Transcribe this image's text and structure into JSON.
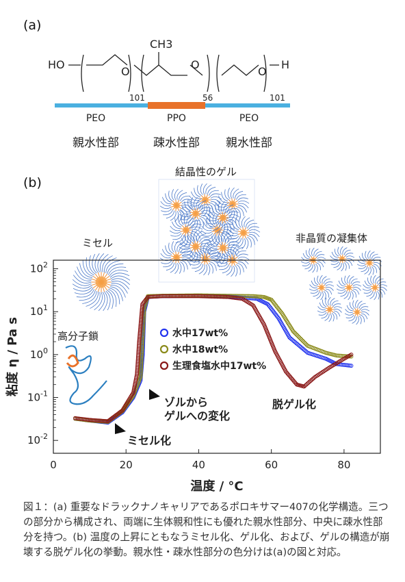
{
  "panel_a": {
    "label": "(a)",
    "formula": {
      "ho": "HO",
      "o1": "O",
      "ch3": "CH3",
      "o2": "O",
      "o3": "O",
      "h": "H",
      "n1": "101",
      "n2": "56",
      "n3": "101"
    },
    "segments": [
      {
        "name": "PEO",
        "role": "親水性部",
        "color": "#4ab0e0"
      },
      {
        "name": "PPO",
        "role": "疎水性部",
        "color": "#e8722a"
      },
      {
        "name": "PEO",
        "role": "親水性部",
        "color": "#4ab0e0"
      }
    ]
  },
  "panel_b": {
    "label": "(b)",
    "illustrations": {
      "micelle": "ミセル",
      "crystal_gel": "結晶性のゲル",
      "amorphous": "非晶質の凝集体",
      "polymer": "高分子鎖"
    },
    "annotations": {
      "micellization": "ミセル化",
      "sol_gel_1": "ゾルから",
      "sol_gel_2": "ゲルへの変化",
      "degel": "脱ゲル化"
    }
  },
  "chart_data": {
    "type": "scatter",
    "xlabel": "温度 / °C",
    "ylabel": "粘度 η / Pa s",
    "xlim": [
      0,
      90
    ],
    "ylim_log10": [
      -2.3,
      2.2
    ],
    "x_ticks": [
      0,
      20,
      40,
      60,
      80
    ],
    "y_ticks": [
      "10^-2",
      "10^-1",
      "10^0",
      "10^1",
      "10^2"
    ],
    "legend_position": "middle-left",
    "series": [
      {
        "name": "水中17wt%",
        "color": "#2233ee",
        "points": [
          [
            6,
            0.032
          ],
          [
            10,
            0.029
          ],
          [
            15,
            0.026
          ],
          [
            19,
            0.045
          ],
          [
            22,
            0.1
          ],
          [
            24,
            0.25
          ],
          [
            24.6,
            1
          ],
          [
            25,
            10
          ],
          [
            26,
            22
          ],
          [
            30,
            23
          ],
          [
            40,
            23.5
          ],
          [
            50,
            22
          ],
          [
            56,
            20
          ],
          [
            59,
            15
          ],
          [
            62,
            7
          ],
          [
            65,
            2.5
          ],
          [
            70,
            1.1
          ],
          [
            75,
            0.8
          ],
          [
            78,
            0.6
          ],
          [
            82,
            0.55
          ]
        ]
      },
      {
        "name": "水中18wt%",
        "color": "#8a8a1a",
        "points": [
          [
            6,
            0.032
          ],
          [
            10,
            0.029
          ],
          [
            15,
            0.027
          ],
          [
            19,
            0.048
          ],
          [
            22,
            0.11
          ],
          [
            24,
            0.3
          ],
          [
            24.5,
            2
          ],
          [
            25,
            12
          ],
          [
            26,
            23
          ],
          [
            30,
            23.5
          ],
          [
            40,
            24
          ],
          [
            55,
            23
          ],
          [
            58,
            22
          ],
          [
            60,
            19
          ],
          [
            63,
            9
          ],
          [
            66,
            3.5
          ],
          [
            70,
            1.6
          ],
          [
            75,
            1.1
          ],
          [
            78,
            0.95
          ],
          [
            82,
            0.9
          ]
        ]
      },
      {
        "name": "生理食塩水中17wt%",
        "color": "#8a1818",
        "points": [
          [
            6,
            0.033
          ],
          [
            10,
            0.03
          ],
          [
            15,
            0.028
          ],
          [
            19,
            0.05
          ],
          [
            22,
            0.13
          ],
          [
            23,
            0.35
          ],
          [
            23.6,
            2
          ],
          [
            24.5,
            15
          ],
          [
            26,
            22
          ],
          [
            30,
            23
          ],
          [
            40,
            23
          ],
          [
            48,
            22
          ],
          [
            52,
            20
          ],
          [
            55,
            14
          ],
          [
            58,
            5
          ],
          [
            61,
            1.2
          ],
          [
            64,
            0.4
          ],
          [
            67,
            0.2
          ],
          [
            69,
            0.18
          ],
          [
            72,
            0.3
          ],
          [
            76,
            0.5
          ],
          [
            80,
            0.8
          ],
          [
            82,
            1.0
          ]
        ]
      }
    ]
  },
  "caption": "図１：(a) 重要なドラックナノキャリアであるポロキサマー407の化学構造。三つの部分から構成され、両端に生体親和性にも優れた親水性部分、中央に疎水性部分を持つ。(b) 温度の上昇にともなうミセル化、ゲル化、および、ゲルの構造が崩壊する脱ゲル化の挙動。親水性・疎水性部分の色分けは(a)の図と対応。"
}
